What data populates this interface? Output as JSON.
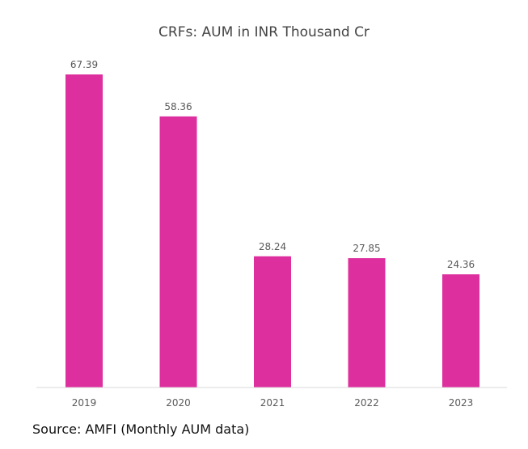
{
  "chart_data": {
    "type": "bar",
    "title": "CRFs: AUM in INR Thousand Cr",
    "categories": [
      "2019",
      "2020",
      "2021",
      "2022",
      "2023"
    ],
    "values": [
      67.39,
      58.36,
      28.24,
      27.85,
      24.36
    ],
    "data_labels": [
      "67.39",
      "58.36",
      "28.24",
      "27.85",
      "24.36"
    ],
    "xlabel": "",
    "ylabel": "",
    "ylim": [
      0,
      67.39
    ],
    "grid": false,
    "legend": "none",
    "bar_color": "#DE2F9E",
    "axis_color": "#D9D9D9"
  },
  "footer": {
    "source": "Source: AMFI (Monthly AUM data)"
  }
}
